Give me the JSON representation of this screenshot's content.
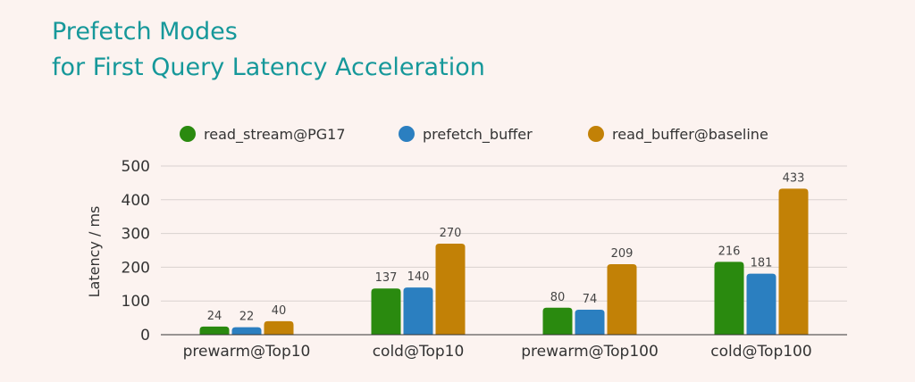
{
  "title": {
    "line1": "Prefetch Modes",
    "line2": "for First Query Latency Acceleration"
  },
  "chart_data": {
    "type": "bar",
    "categories": [
      "prewarm@Top10",
      "cold@Top10",
      "prewarm@Top100",
      "cold@Top100"
    ],
    "series": [
      {
        "name": "read_stream@PG17",
        "color": "#2a8a0f",
        "values": [
          24,
          137,
          80,
          216
        ]
      },
      {
        "name": "prefetch_buffer",
        "color": "#2b7fc0",
        "values": [
          22,
          140,
          74,
          181
        ]
      },
      {
        "name": "read_buffer@baseline",
        "color": "#c28106",
        "values": [
          40,
          270,
          209,
          433
        ]
      }
    ],
    "ylabel": "Latency / ms",
    "xlabel": "",
    "ylim": [
      0,
      500
    ],
    "yticks": [
      0,
      100,
      200,
      300,
      400,
      500
    ],
    "grid": true,
    "legend": "top-center"
  }
}
